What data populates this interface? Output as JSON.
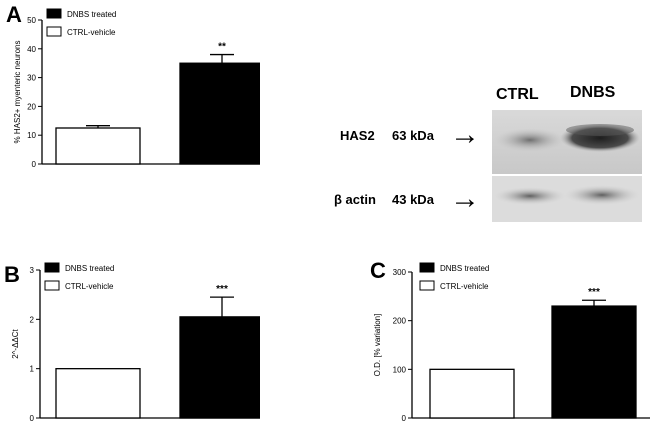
{
  "panels": {
    "a": "A",
    "b": "B",
    "c": "C"
  },
  "chart_data": [
    {
      "id": "A",
      "type": "bar",
      "categories": [
        "CTRL-vehicle",
        "DNBS treated"
      ],
      "values": [
        12.5,
        35
      ],
      "errors": [
        0.8,
        3
      ],
      "significance": [
        "",
        "**"
      ],
      "ylabel": "% HAS2+ myenteric neurons",
      "ylim": [
        0,
        50
      ],
      "yticks": [
        "0",
        "10",
        "20",
        "30",
        "40",
        "50"
      ],
      "legend": [
        "DNBS treated",
        "CTRL-vehicle"
      ],
      "legend_position": "top-left",
      "colors": [
        "#ffffff",
        "#000000"
      ]
    },
    {
      "id": "B",
      "type": "bar",
      "categories": [
        "CTRL-vehicle",
        "DNBS treated"
      ],
      "values": [
        1,
        2.05
      ],
      "errors": [
        0,
        0.4
      ],
      "significance": [
        "",
        "***"
      ],
      "ylabel": "2^-ΔΔCt",
      "ylim": [
        0,
        3
      ],
      "yticks": [
        "0",
        "1",
        "2",
        "3"
      ],
      "legend": [
        "DNBS treated",
        "CTRL-vehicle"
      ],
      "legend_position": "top-left",
      "colors": [
        "#ffffff",
        "#000000"
      ]
    },
    {
      "id": "C",
      "type": "bar",
      "categories": [
        "CTRL-vehicle",
        "DNBS treated"
      ],
      "values": [
        100,
        230
      ],
      "errors": [
        0,
        12
      ],
      "significance": [
        "",
        "***"
      ],
      "ylabel": "O.D. [% variation]",
      "ylim": [
        0,
        300
      ],
      "yticks": [
        "0",
        "100",
        "200",
        "300"
      ],
      "legend": [
        "DNBS treated",
        "CTRL-vehicle"
      ],
      "legend_position": "top-left",
      "colors": [
        "#ffffff",
        "#000000"
      ]
    }
  ],
  "blot": {
    "lanes": [
      "CTRL",
      "DNBS"
    ],
    "rows": [
      {
        "protein": "HAS2",
        "weight": "63 kDa"
      },
      {
        "protein": "β actin",
        "weight": "43 kDa"
      }
    ],
    "arrow_glyph": "→"
  }
}
